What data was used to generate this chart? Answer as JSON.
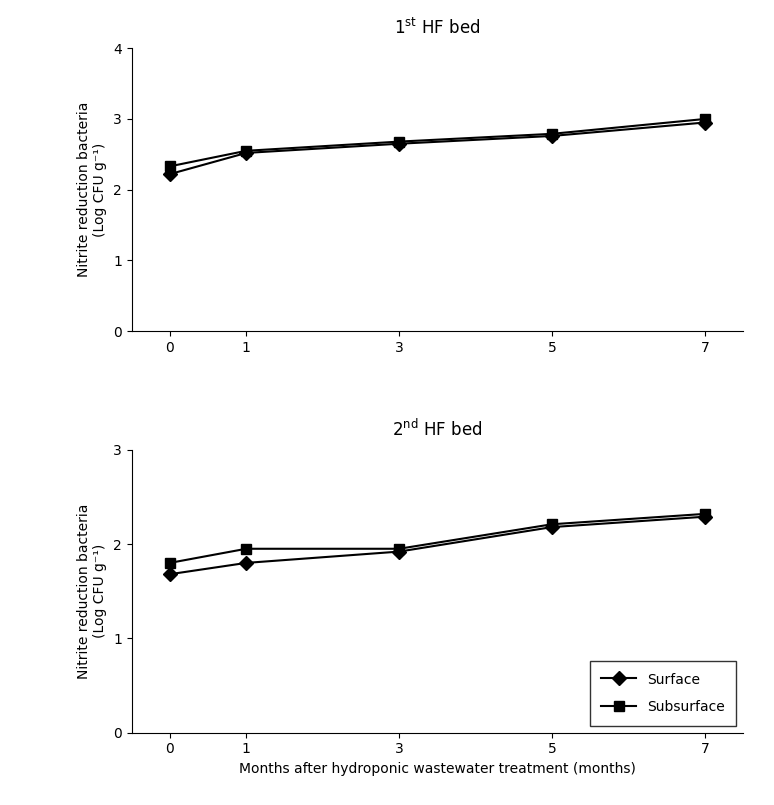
{
  "x": [
    0,
    1,
    3,
    5,
    7
  ],
  "plot1": {
    "title_parts": [
      "1",
      "st",
      " HF bed"
    ],
    "surface": [
      2.22,
      2.52,
      2.65,
      2.76,
      2.95
    ],
    "subsurface": [
      2.33,
      2.55,
      2.68,
      2.79,
      3.0
    ],
    "ylim": [
      0,
      4
    ],
    "yticks": [
      0,
      1,
      2,
      3,
      4
    ],
    "ylabel_line1": "Nitrite reduction bacteria",
    "ylabel_line2": "(Log CFU g⁻¹)"
  },
  "plot2": {
    "title_parts": [
      "2",
      "nd",
      " HF bed"
    ],
    "surface": [
      1.68,
      1.8,
      1.92,
      2.18,
      2.29
    ],
    "subsurface": [
      1.8,
      1.95,
      1.95,
      2.21,
      2.32
    ],
    "ylim": [
      0,
      3
    ],
    "yticks": [
      0,
      1,
      2,
      3
    ],
    "ylabel_line1": "Nitrite reduction bacteria",
    "ylabel_line2": "(Log CFU g⁻¹)"
  },
  "xlabel": "Months after hydroponic wastewater treatment (months)",
  "xticks": [
    0,
    1,
    3,
    5,
    7
  ],
  "surface_color": "#000000",
  "subsurface_color": "#000000",
  "surface_marker": "D",
  "subsurface_marker": "s",
  "surface_label": "Surface",
  "subsurface_label": "Subsurface",
  "markersize": 7,
  "linewidth": 1.5,
  "title_fontsize": 12,
  "label_fontsize": 10,
  "tick_fontsize": 10,
  "legend_fontsize": 10
}
